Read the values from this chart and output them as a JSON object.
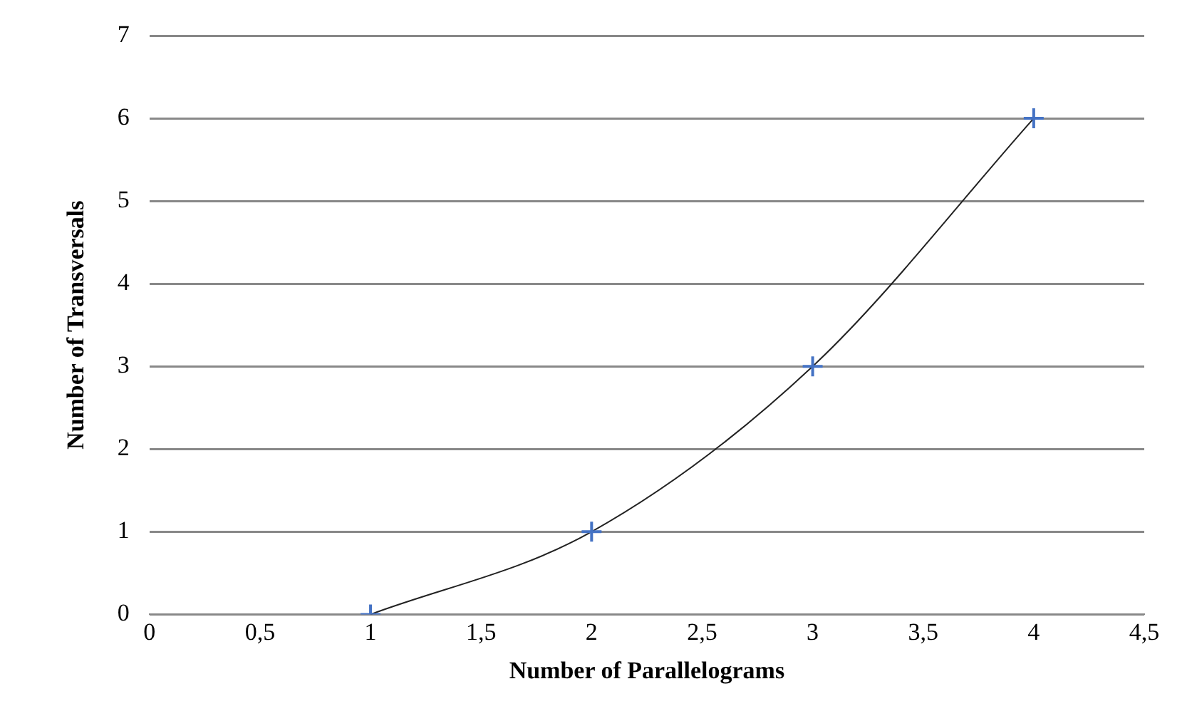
{
  "chart_data": {
    "type": "line",
    "xlabel": "Number of Parallelograms",
    "ylabel": "Number of Transversals",
    "x": [
      1,
      2,
      3,
      4
    ],
    "series": [
      {
        "color": "#4472c4",
        "values": [
          0,
          1,
          3,
          6
        ]
      }
    ],
    "xlim": [
      0,
      4.5
    ],
    "xticks": [
      0,
      {
        "value": 0.5,
        "label": "0,5"
      },
      1,
      {
        "value": 1.5,
        "label": "1,5"
      },
      2,
      {
        "value": 2.5,
        "label": "2,5"
      },
      3,
      {
        "value": 3.5,
        "label": "3,5"
      },
      4,
      {
        "value": 4.5,
        "label": "4,5"
      }
    ],
    "ylim": [
      0,
      7
    ],
    "yticks": [
      0,
      1,
      2,
      3,
      4,
      5,
      6,
      7
    ],
    "grid": "y",
    "legend": false,
    "marker": "cross",
    "line_style": "solid"
  }
}
